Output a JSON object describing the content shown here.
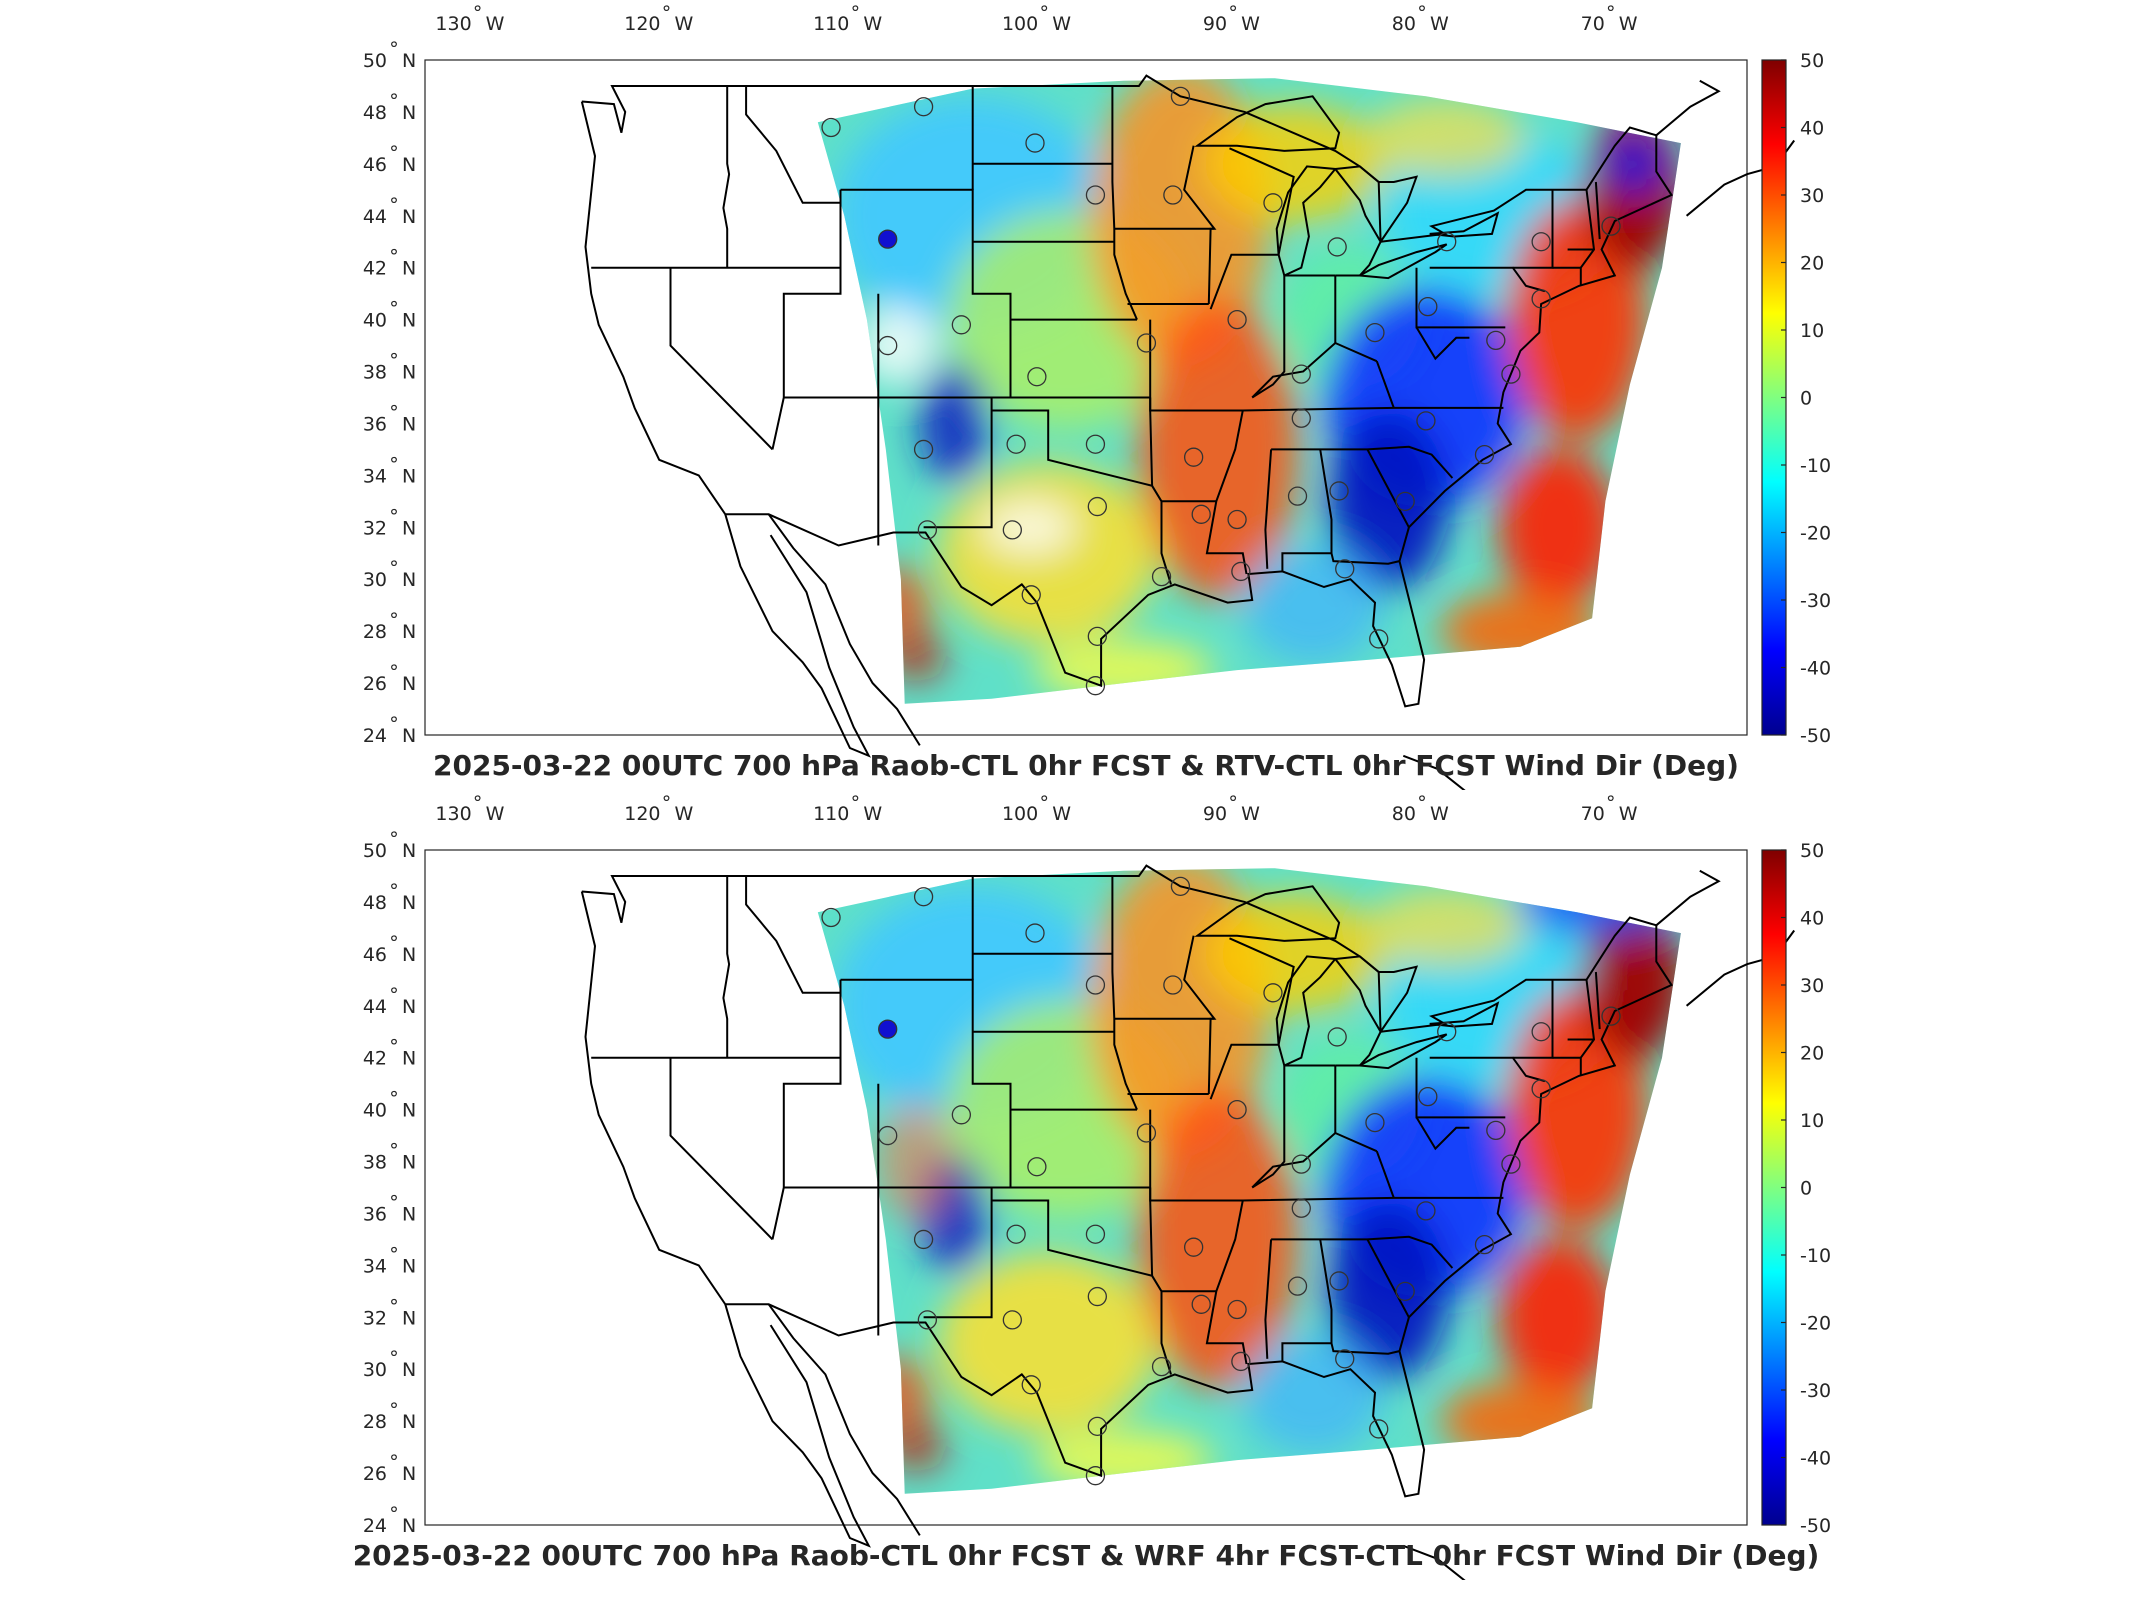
{
  "colorbar": {
    "ticks": [
      "50",
      "40",
      "30",
      "20",
      "10",
      "0",
      "-10",
      "-20",
      "-30",
      "-40",
      "-50"
    ],
    "colormap": "jet",
    "colors": [
      "#7f0000",
      "#ff0000",
      "#ff8000",
      "#ffff00",
      "#80ff80",
      "#00ffff",
      "#0080ff",
      "#0000ff",
      "#00008f"
    ]
  },
  "lon_labels": [
    "130",
    "120",
    "110",
    "100",
    "90",
    "80",
    "70"
  ],
  "lat_labels": [
    "50",
    "48",
    "46",
    "44",
    "42",
    "40",
    "38",
    "36",
    "34",
    "32",
    "30",
    "28",
    "26",
    "24"
  ],
  "units": {
    "west": "W",
    "north": "N",
    "degree": "°"
  },
  "panels": [
    {
      "title": "2025-03-22 00UTC 700 hPa Raob-CTL 0hr FCST & RTV-CTL 0hr FCST Wind Dir (Deg)"
    },
    {
      "title": "2025-03-22 00UTC 700 hPa Raob-CTL 0hr FCST & WRF 4hr FCST-CTL 0hr FCST Wind Dir (Deg)"
    }
  ]
}
